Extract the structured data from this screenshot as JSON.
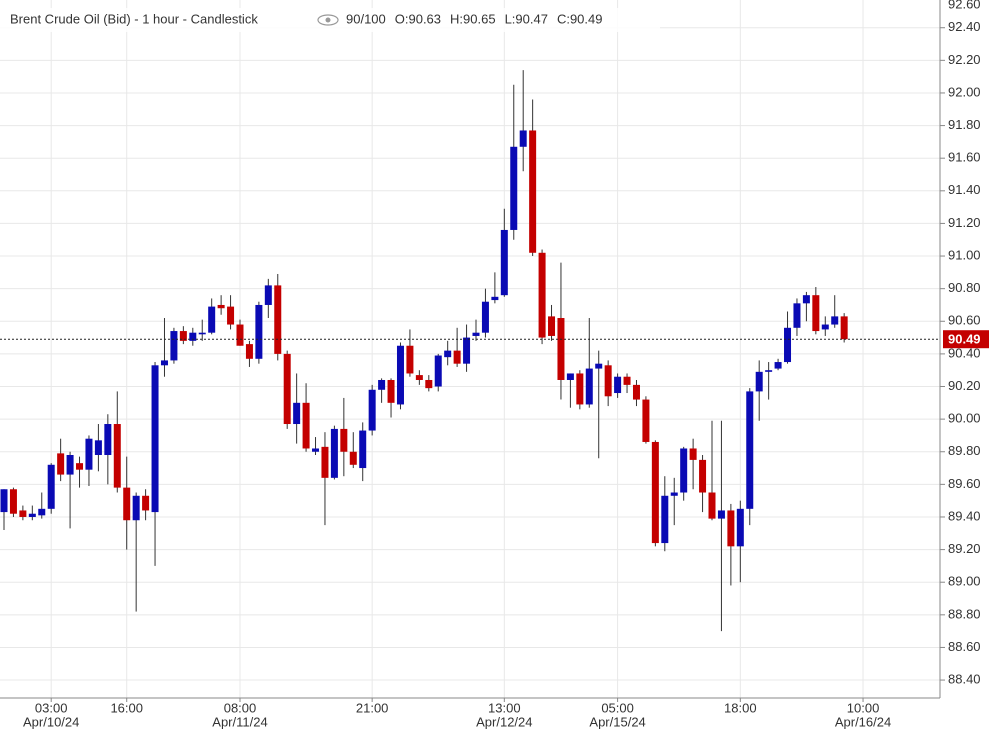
{
  "chart_data": {
    "type": "candlestick",
    "title": "Brent Crude Oil (Bid) - 1 hour - Candlestick",
    "header_items": [
      "90/100",
      "O:90.63",
      "H:90.65",
      "L:90.47",
      "C:90.49"
    ],
    "categories": [
      null,
      null,
      null,
      null,
      null,
      "03:00",
      null,
      null,
      null,
      null,
      null,
      null,
      null,
      "16:00",
      null,
      null,
      null,
      null,
      null,
      null,
      null,
      null,
      null,
      null,
      null,
      "08:00",
      null,
      null,
      null,
      null,
      null,
      null,
      null,
      null,
      null,
      null,
      null,
      null,
      null,
      "21:00",
      null,
      null,
      null,
      null,
      null,
      null,
      null,
      null,
      null,
      null,
      null,
      null,
      null,
      "13:00",
      null,
      null,
      null,
      null,
      null,
      null,
      null,
      null,
      null,
      null,
      null,
      "05:00",
      null,
      null,
      null,
      null,
      null,
      null,
      null,
      null,
      null,
      null,
      null,
      null,
      "18:00",
      null,
      null,
      null,
      null,
      null,
      null,
      null,
      null,
      null,
      null,
      null,
      null,
      "10:00"
    ],
    "dates": [
      null,
      null,
      null,
      null,
      null,
      "Apr/10/24",
      null,
      null,
      null,
      null,
      null,
      null,
      null,
      null,
      null,
      null,
      null,
      null,
      null,
      null,
      null,
      null,
      null,
      null,
      null,
      "Apr/11/24",
      null,
      null,
      null,
      null,
      null,
      null,
      null,
      null,
      null,
      null,
      null,
      null,
      null,
      null,
      null,
      null,
      null,
      null,
      null,
      null,
      null,
      null,
      null,
      null,
      null,
      null,
      null,
      "Apr/12/24",
      null,
      null,
      null,
      null,
      null,
      null,
      null,
      null,
      null,
      null,
      null,
      "Apr/15/24",
      null,
      null,
      null,
      null,
      null,
      null,
      null,
      null,
      null,
      null,
      null,
      null,
      null,
      null,
      null,
      null,
      null,
      null,
      null,
      null,
      null,
      null,
      null,
      null,
      null,
      "Apr/16/24"
    ],
    "open": [
      89.43,
      89.57,
      89.44,
      89.4,
      89.41,
      89.45,
      89.79,
      89.66,
      89.73,
      89.69,
      89.78,
      89.78,
      89.97,
      89.58,
      89.38,
      89.53,
      89.43,
      90.33,
      90.36,
      90.54,
      90.48,
      90.52,
      90.53,
      90.7,
      90.69,
      90.58,
      90.46,
      90.37,
      90.7,
      90.82,
      90.4,
      89.97,
      90.1,
      89.8,
      89.83,
      89.64,
      89.94,
      89.8,
      89.7,
      89.93,
      90.18,
      90.24,
      90.09,
      90.45,
      90.27,
      90.24,
      90.2,
      90.38,
      90.42,
      90.34,
      90.51,
      90.53,
      90.73,
      90.76,
      91.16,
      91.67,
      91.77,
      91.02,
      90.63,
      90.62,
      90.24,
      90.28,
      90.09,
      90.31,
      90.33,
      90.16,
      90.26,
      90.21,
      90.12,
      89.86,
      89.24,
      89.53,
      89.55,
      89.82,
      89.75,
      89.55,
      89.39,
      89.44,
      89.22,
      89.45,
      90.17,
      90.29,
      90.31,
      90.35,
      90.56,
      90.71,
      90.76,
      90.55,
      90.58,
      90.63,
      null,
      null
    ],
    "high": [
      89.57,
      89.58,
      89.47,
      89.47,
      89.55,
      89.73,
      89.88,
      89.8,
      89.77,
      89.9,
      89.97,
      90.03,
      90.17,
      89.77,
      89.55,
      89.57,
      90.35,
      90.62,
      90.56,
      90.57,
      90.56,
      90.61,
      90.74,
      90.76,
      90.76,
      90.61,
      90.48,
      90.72,
      90.86,
      90.89,
      90.42,
      90.28,
      90.22,
      89.89,
      89.92,
      89.96,
      90.13,
      89.92,
      89.98,
      90.21,
      90.25,
      90.25,
      90.47,
      90.55,
      90.3,
      90.27,
      90.4,
      90.48,
      90.56,
      90.58,
      90.61,
      90.8,
      90.9,
      91.29,
      92.05,
      92.14,
      91.96,
      91.04,
      90.7,
      90.96,
      90.28,
      90.3,
      90.62,
      90.42,
      90.36,
      90.28,
      90.28,
      90.24,
      90.14,
      89.87,
      89.65,
      89.64,
      89.83,
      89.88,
      89.78,
      89.99,
      89.99,
      89.48,
      89.5,
      90.19,
      90.36,
      90.35,
      90.37,
      90.66,
      90.74,
      90.78,
      90.81,
      90.63,
      90.76,
      90.65,
      null,
      null
    ],
    "low": [
      89.32,
      89.4,
      89.38,
      89.38,
      89.39,
      89.42,
      89.62,
      89.33,
      89.58,
      89.59,
      89.68,
      89.6,
      89.55,
      89.2,
      88.82,
      89.38,
      89.1,
      90.26,
      90.34,
      90.46,
      90.45,
      90.48,
      90.52,
      90.64,
      90.55,
      90.45,
      90.32,
      90.34,
      90.62,
      90.36,
      89.94,
      89.85,
      89.8,
      89.78,
      89.35,
      89.63,
      89.65,
      89.7,
      89.62,
      89.9,
      90.1,
      90.01,
      90.06,
      90.26,
      90.21,
      90.17,
      90.17,
      90.33,
      90.32,
      90.29,
      90.48,
      90.5,
      90.71,
      90.75,
      91.1,
      91.52,
      91.0,
      90.46,
      90.48,
      90.12,
      90.07,
      90.06,
      90.07,
      89.76,
      90.08,
      90.13,
      90.16,
      90.08,
      89.85,
      89.22,
      89.19,
      89.35,
      89.5,
      89.57,
      89.43,
      89.38,
      88.7,
      88.98,
      89.0,
      89.35,
      89.99,
      90.12,
      90.3,
      90.34,
      90.51,
      90.6,
      90.52,
      90.51,
      90.56,
      90.47,
      null,
      null
    ],
    "close": [
      89.57,
      89.42,
      89.4,
      89.42,
      89.45,
      89.72,
      89.66,
      89.78,
      89.69,
      89.88,
      89.87,
      89.97,
      89.58,
      89.38,
      89.53,
      89.44,
      90.33,
      90.36,
      90.54,
      90.48,
      90.53,
      90.53,
      90.69,
      90.68,
      90.58,
      90.45,
      90.37,
      90.7,
      90.82,
      90.4,
      89.97,
      90.1,
      89.82,
      89.82,
      89.64,
      89.94,
      89.8,
      89.72,
      89.93,
      90.18,
      90.24,
      90.1,
      90.45,
      90.28,
      90.24,
      90.19,
      90.39,
      90.42,
      90.34,
      90.5,
      90.53,
      90.72,
      90.75,
      91.16,
      91.67,
      91.77,
      91.02,
      90.5,
      90.51,
      90.24,
      90.28,
      90.09,
      90.31,
      90.34,
      90.14,
      90.26,
      90.21,
      90.12,
      89.86,
      89.24,
      89.53,
      89.55,
      89.82,
      89.75,
      89.55,
      89.39,
      89.44,
      89.22,
      89.45,
      90.17,
      90.29,
      90.3,
      90.35,
      90.56,
      90.71,
      90.76,
      90.54,
      90.58,
      90.63,
      90.49,
      null,
      null
    ],
    "up_color": "#0a0ab4",
    "down_color": "#c40000",
    "last_price": 90.49,
    "last_price_label": "90.49",
    "ylim": [
      88.29,
      92.57
    ],
    "yticks": [
      {
        "value": 88.4,
        "label": "88.40"
      },
      {
        "value": 88.6,
        "label": "88.60"
      },
      {
        "value": 88.8,
        "label": "88.80"
      },
      {
        "value": 89,
        "label": "89.00"
      },
      {
        "value": 89.2,
        "label": "89.20"
      },
      {
        "value": 89.4,
        "label": "89.40"
      },
      {
        "value": 89.6,
        "label": "89.60"
      },
      {
        "value": 89.8,
        "label": "89.80"
      },
      {
        "value": 90,
        "label": "90.00"
      },
      {
        "value": 90.2,
        "label": "90.20"
      },
      {
        "value": 90.4,
        "label": "90.40"
      },
      {
        "value": 90.6,
        "label": "90.60"
      },
      {
        "value": 90.8,
        "label": "90.80"
      },
      {
        "value": 91,
        "label": "91.00"
      },
      {
        "value": 91.2,
        "label": "91.20"
      },
      {
        "value": 91.4,
        "label": "91.40"
      },
      {
        "value": 91.6,
        "label": "91.60"
      },
      {
        "value": 91.8,
        "label": "91.80"
      },
      {
        "value": 92,
        "label": "92.00"
      },
      {
        "value": 92.2,
        "label": "92.20"
      },
      {
        "value": 92.4,
        "label": "92.40"
      },
      {
        "value": 92.6,
        "label": "92.60"
      }
    ],
    "grid": true
  }
}
